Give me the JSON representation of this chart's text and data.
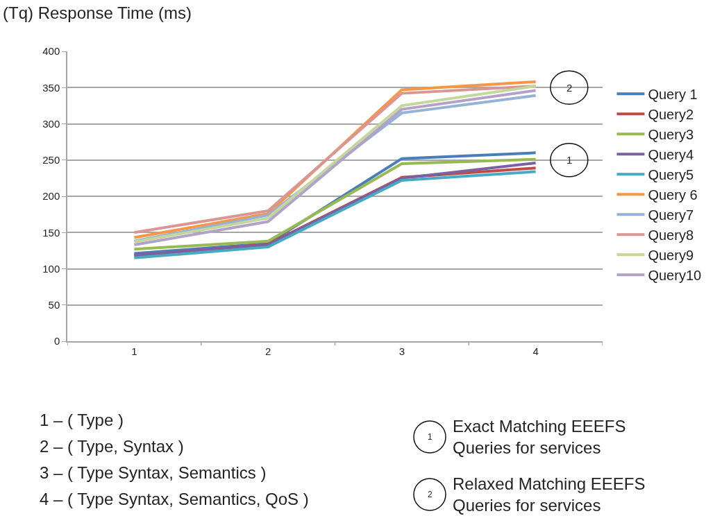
{
  "chart_data": {
    "type": "line",
    "ylabel": "(Tq) Response Time (ms)",
    "categories": [
      "1",
      "2",
      "3",
      "4"
    ],
    "series": [
      {
        "name": "Query 1",
        "color": "#4a7ebb",
        "values": [
          121,
          135,
          252,
          260
        ]
      },
      {
        "name": "Query2",
        "color": "#be4b48",
        "values": [
          118,
          134,
          226,
          239
        ]
      },
      {
        "name": "Query3",
        "color": "#98b954",
        "values": [
          127,
          138,
          245,
          251
        ]
      },
      {
        "name": "Query4",
        "color": "#7d60a0",
        "values": [
          119,
          133,
          225,
          246
        ]
      },
      {
        "name": "Query5",
        "color": "#46aac5",
        "values": [
          115,
          130,
          222,
          234
        ]
      },
      {
        "name": "Query 6",
        "color": "#f79646",
        "values": [
          143,
          176,
          347,
          358
        ]
      },
      {
        "name": "Query7",
        "color": "#95b3d7",
        "values": [
          138,
          174,
          315,
          339
        ]
      },
      {
        "name": "Query8",
        "color": "#d99694",
        "values": [
          150,
          180,
          342,
          352
        ]
      },
      {
        "name": "Query9",
        "color": "#c3d69b",
        "values": [
          137,
          170,
          325,
          352
        ]
      },
      {
        "name": "Query10",
        "color": "#b3a2c7",
        "values": [
          133,
          165,
          320,
          346
        ]
      }
    ],
    "ylim": [
      0,
      400
    ],
    "yticks": [
      0,
      50,
      100,
      150,
      200,
      250,
      300,
      350,
      400
    ],
    "grid": "y",
    "legend": "right",
    "marker": "none",
    "line_style": "solid",
    "annotations": [
      {
        "text": "2",
        "x": "4",
        "y": 350
      },
      {
        "text": "1",
        "x": "4",
        "y": 250
      },
      "1 – ( Type )",
      "2 – ( Type, Syntax )",
      "3 – ( Type Syntax, Semantics )",
      "4 – ( Type Syntax, Semantics, QoS )",
      "1",
      "Exact Matching EEEFS Queries for services",
      "2",
      "Relaxed Matching EEEFS Queries for services"
    ]
  }
}
